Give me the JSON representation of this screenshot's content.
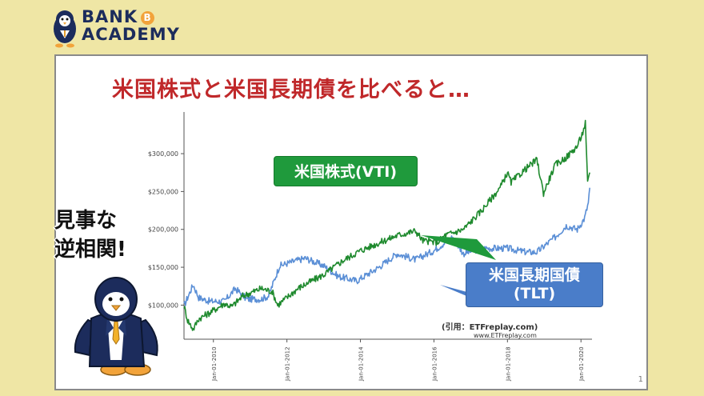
{
  "logo": {
    "line1": "BANK",
    "line2": "ACADEMY",
    "coin_glyph": "B"
  },
  "title": "米国株式と米国長期債を比べると…",
  "side_text": {
    "line1": "見事な",
    "line2": "逆相関!"
  },
  "callouts": {
    "stock": "米国株式(VTI)",
    "bond_line1": "米国長期国債",
    "bond_line2": "(TLT)"
  },
  "source": "(引用：ETFreplay.com)",
  "source_url": "www.ETFreplay.com",
  "page_number": "1",
  "colors": {
    "stock": "#1f8a2e",
    "bond": "#5b8fd6",
    "title": "#c0282a",
    "background": "#efe6a5"
  },
  "chart_data": {
    "type": "line",
    "y_ticks": [
      "$100,000",
      "$150,000",
      "$200,000",
      "$250,000",
      "$300,000"
    ],
    "y_tick_values": [
      100000,
      150000,
      200000,
      250000,
      300000
    ],
    "x_ticks": [
      "Jan-01-2010",
      "Jan-01-2012",
      "Jan-01-2014",
      "Jan-01-2016",
      "Jan-01-2018",
      "Jan-01-2020"
    ],
    "x_tick_values": [
      2010,
      2012,
      2014,
      2016,
      2018,
      2020
    ],
    "xlim": [
      2009.2,
      2020.3
    ],
    "ylim": [
      55000,
      355000
    ],
    "grid": false,
    "series": [
      {
        "name": "米国株式(VTI)",
        "color": "#1f8a2e",
        "x": [
          2009.2,
          2009.3,
          2009.45,
          2009.6,
          2009.9,
          2010.3,
          2010.5,
          2010.8,
          2011.3,
          2011.6,
          2011.75,
          2012.0,
          2012.3,
          2012.6,
          2013.0,
          2013.5,
          2014.0,
          2014.5,
          2015.0,
          2015.5,
          2015.7,
          2016.1,
          2016.3,
          2016.8,
          2017.3,
          2017.8,
          2018.0,
          2018.1,
          2018.5,
          2018.8,
          2018.98,
          2019.3,
          2019.6,
          2019.9,
          2020.05,
          2020.12,
          2020.18,
          2020.24
        ],
        "y": [
          99000,
          80000,
          68000,
          82000,
          90000,
          102000,
          98000,
          112000,
          122000,
          118000,
          100000,
          110000,
          122000,
          130000,
          140000,
          158000,
          172000,
          182000,
          192000,
          198000,
          185000,
          183000,
          192000,
          200000,
          225000,
          255000,
          275000,
          262000,
          280000,
          292000,
          248000,
          285000,
          295000,
          310000,
          328000,
          340000,
          260000,
          275000
        ]
      },
      {
        "name": "米国長期国債(TLT)",
        "color": "#5b8fd6",
        "x": [
          2009.2,
          2009.45,
          2009.6,
          2009.9,
          2010.3,
          2010.6,
          2010.9,
          2011.3,
          2011.5,
          2011.8,
          2012.2,
          2012.5,
          2013.0,
          2013.4,
          2013.9,
          2014.5,
          2015.0,
          2015.5,
          2016.0,
          2016.5,
          2016.8,
          2017.3,
          2018.0,
          2018.5,
          2018.8,
          2019.3,
          2019.6,
          2019.9,
          2020.1,
          2020.2,
          2020.24
        ],
        "y": [
          99000,
          127000,
          110000,
          105000,
          105000,
          122000,
          108000,
          108000,
          112000,
          152000,
          158000,
          162000,
          152000,
          138000,
          132000,
          150000,
          168000,
          160000,
          172000,
          190000,
          168000,
          175000,
          175000,
          170000,
          170000,
          190000,
          205000,
          200000,
          215000,
          235000,
          255000
        ]
      }
    ]
  }
}
